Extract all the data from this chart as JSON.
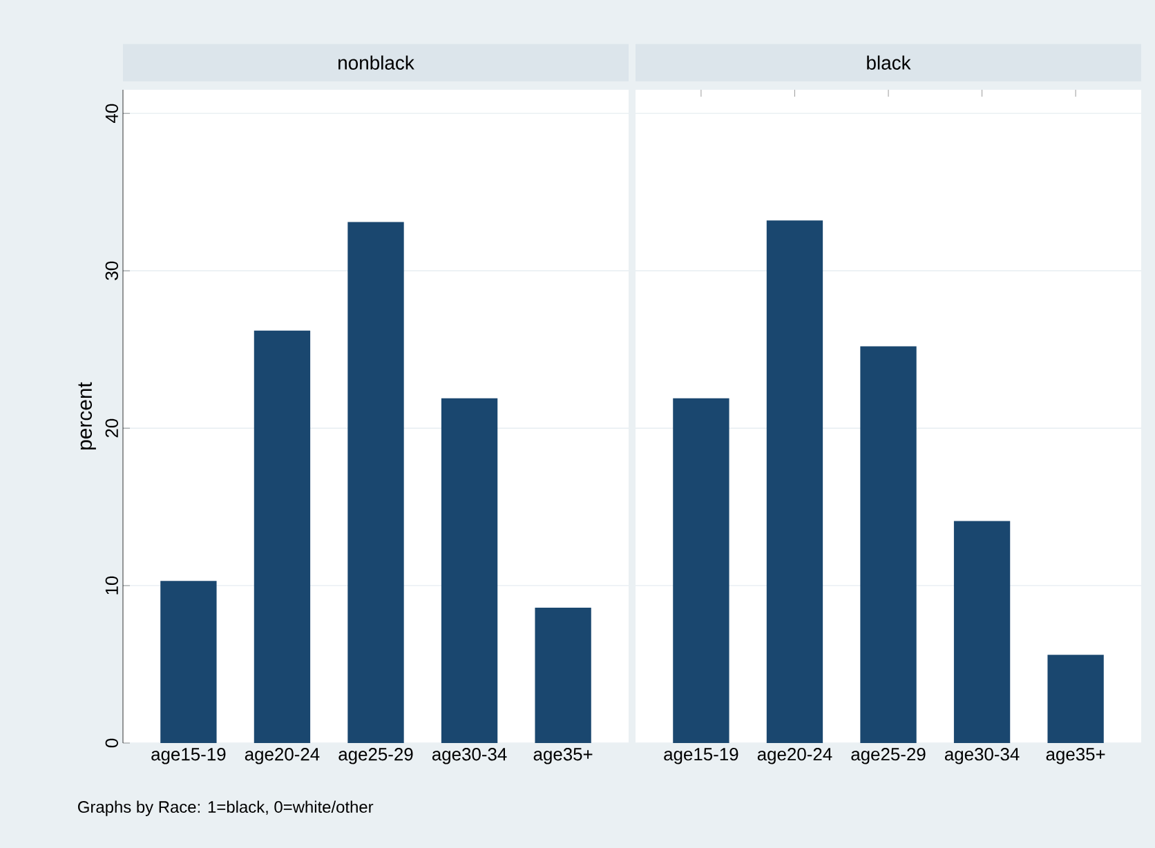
{
  "chart_data": [
    {
      "type": "bar",
      "title": "nonblack",
      "ylabel": "percent",
      "categories": [
        "age15-19",
        "age20-24",
        "age25-29",
        "age30-34",
        "age35+"
      ],
      "values": [
        10.3,
        26.2,
        33.1,
        21.9,
        8.6
      ],
      "color": "#1a476f",
      "ylim": [
        0,
        41.5
      ],
      "yticks": [
        0,
        10,
        20,
        30,
        40
      ],
      "grid": "y",
      "annotations": [
        "Graphs by Race: 1=black, 0=white/other"
      ]
    },
    {
      "type": "bar",
      "title": "black",
      "categories": [
        "age15-19",
        "age20-24",
        "age25-29",
        "age30-34",
        "age35+"
      ],
      "values": [
        21.9,
        33.2,
        25.2,
        14.1,
        5.6
      ],
      "color": "#1a476f",
      "ylim": [
        0,
        41.5
      ],
      "yticks": [
        0,
        10,
        20,
        30,
        40
      ],
      "grid": "y",
      "tick_labels": "x"
    }
  ]
}
